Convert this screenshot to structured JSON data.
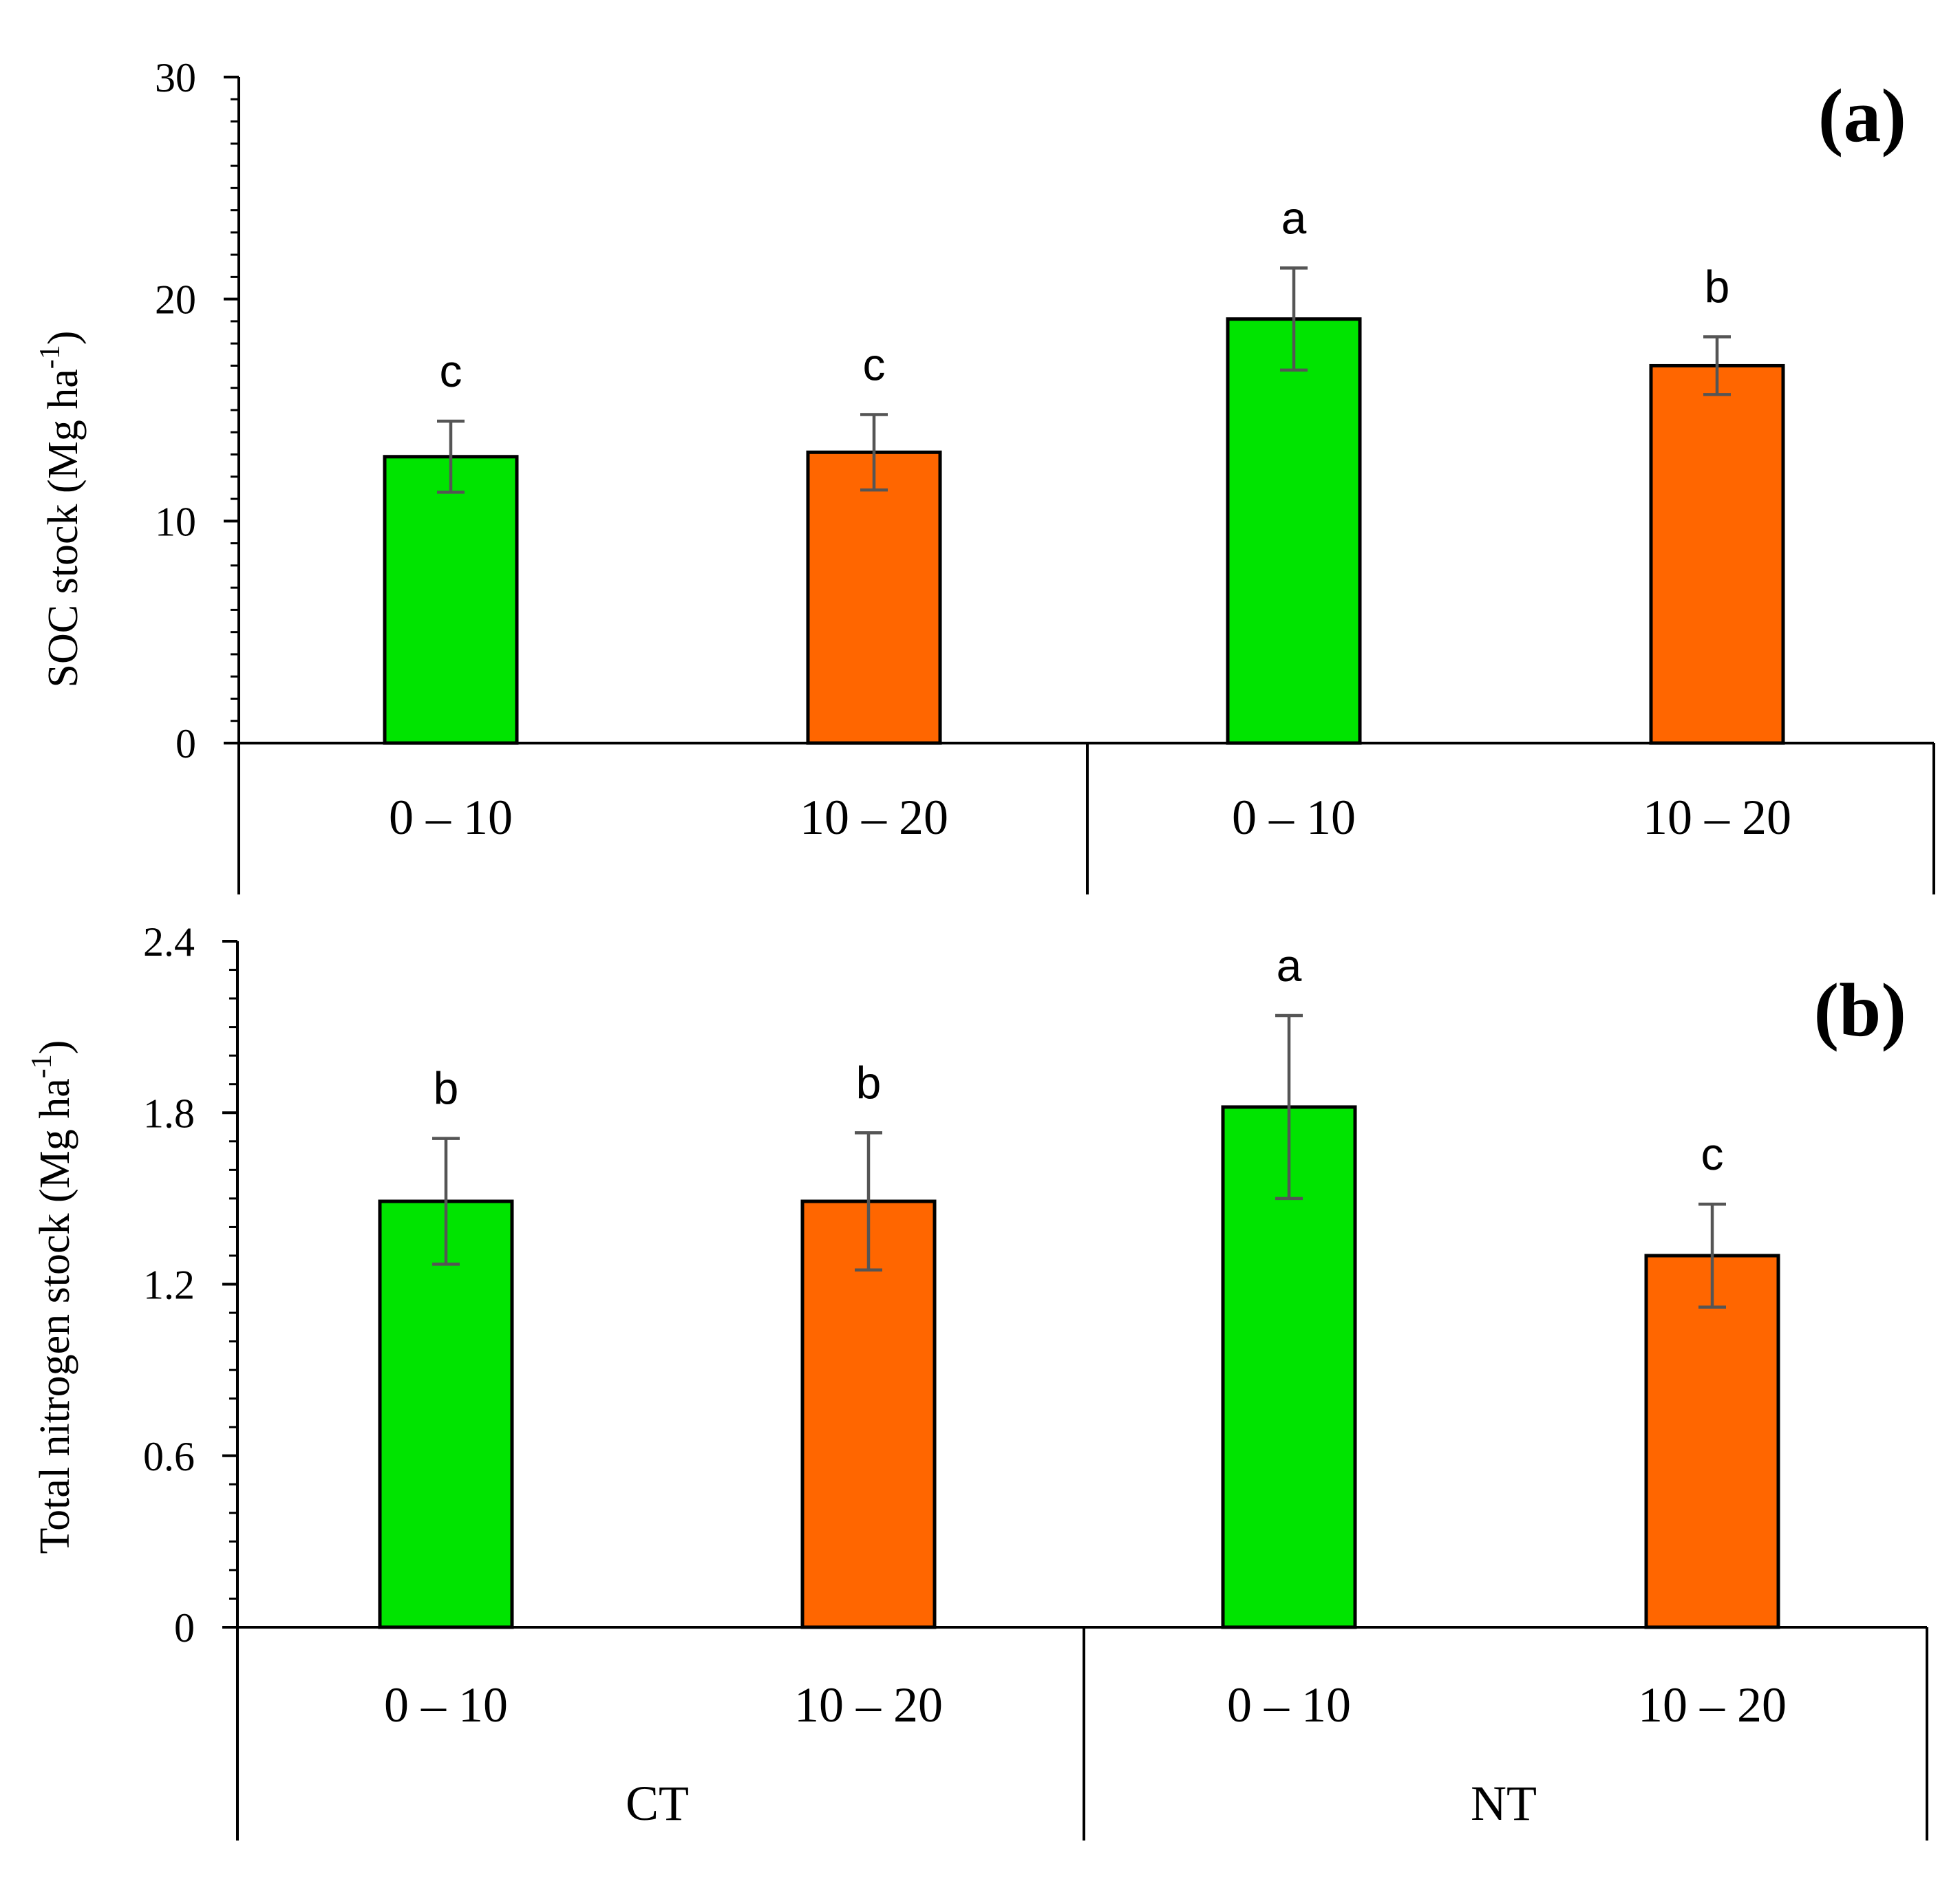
{
  "chart_data": [
    {
      "type": "bar",
      "panel_label": "(a)",
      "ylabel": "SOC stock (Mg ha",
      "ylabel_sup": "-1",
      "ylabel_end": ")",
      "ylim": [
        0,
        30
      ],
      "yticks": [
        "0",
        "10",
        "20",
        "30"
      ],
      "groups": [
        {
          "name": "CT",
          "categories": [
            "0 – 10",
            "10 – 20"
          ]
        },
        {
          "name": "NT",
          "categories": [
            "0 – 10",
            "10 – 20"
          ]
        }
      ],
      "bars": [
        {
          "group": "CT",
          "depth": "0 – 10",
          "value": 12.9,
          "error": 1.6,
          "letter": "c",
          "color": "#00e400"
        },
        {
          "group": "CT",
          "depth": "10 – 20",
          "value": 13.1,
          "error": 1.7,
          "letter": "c",
          "color": "#ff6600"
        },
        {
          "group": "NT",
          "depth": "0 – 10",
          "value": 19.1,
          "error": 2.3,
          "letter": "a",
          "color": "#00e400"
        },
        {
          "group": "NT",
          "depth": "10 – 20",
          "value": 17.0,
          "error": 1.3,
          "letter": "b",
          "color": "#ff6600"
        }
      ]
    },
    {
      "type": "bar",
      "panel_label": "(b)",
      "ylabel": "Total nitrogen stock (Mg ha",
      "ylabel_sup": "-1",
      "ylabel_end": ")",
      "ylim": [
        0,
        2.4
      ],
      "yticks": [
        "0",
        "0.6",
        "1.2",
        "1.8",
        "2.4"
      ],
      "groups": [
        {
          "name": "CT",
          "categories": [
            "0 – 10",
            "10 – 20"
          ]
        },
        {
          "name": "NT",
          "categories": [
            "0 – 10",
            "10 – 20"
          ]
        }
      ],
      "bars": [
        {
          "group": "CT",
          "depth": "0 – 10",
          "value": 1.49,
          "error": 0.22,
          "letter": "b",
          "color": "#00e400"
        },
        {
          "group": "CT",
          "depth": "10 – 20",
          "value": 1.49,
          "error": 0.24,
          "letter": "b",
          "color": "#ff6600"
        },
        {
          "group": "NT",
          "depth": "0 – 10",
          "value": 1.82,
          "error": 0.32,
          "letter": "a",
          "color": "#00e400"
        },
        {
          "group": "NT",
          "depth": "10 – 20",
          "value": 1.3,
          "error": 0.18,
          "letter": "c",
          "color": "#ff6600"
        }
      ]
    }
  ]
}
